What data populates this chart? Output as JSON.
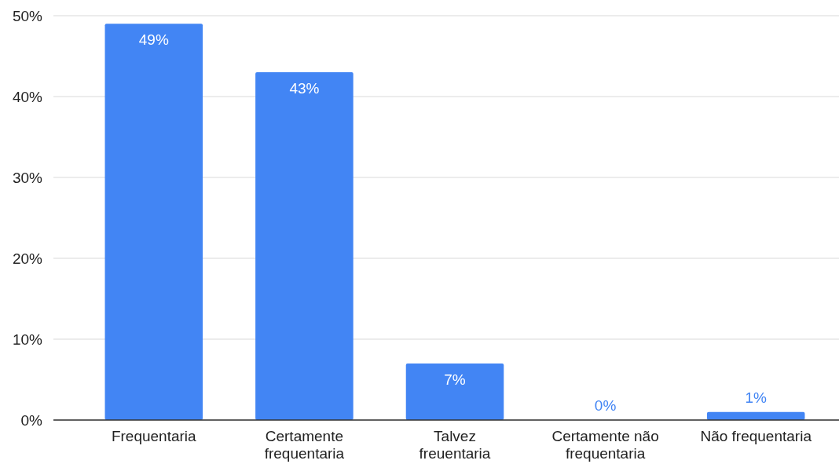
{
  "chart_data": {
    "type": "bar",
    "categories": [
      "Frequentaria",
      "Certamente frequentaria",
      "Talvez freuentaria",
      "Certamente não frequentaria",
      "Não frequentaria"
    ],
    "values": [
      49,
      43,
      7,
      0,
      1
    ],
    "value_labels": [
      "49%",
      "43%",
      "7%",
      "0%",
      "1%"
    ],
    "color": "#4285f4",
    "ylim": [
      0,
      50
    ],
    "yticks": [
      {
        "value": 0,
        "label": "0%"
      },
      {
        "value": 10,
        "label": "10%"
      },
      {
        "value": 20,
        "label": "20%"
      },
      {
        "value": 30,
        "label": "30%"
      },
      {
        "value": 40,
        "label": "40%"
      },
      {
        "value": 50,
        "label": "50%"
      }
    ],
    "grid": "y"
  }
}
